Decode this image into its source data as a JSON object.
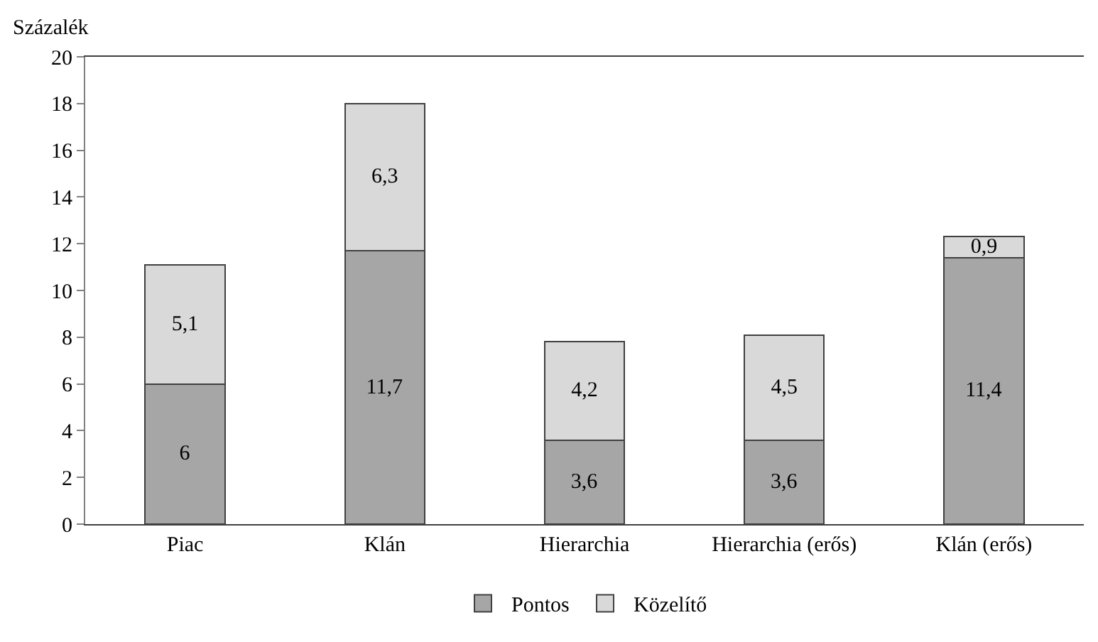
{
  "chart_data": {
    "type": "bar",
    "stacked": true,
    "ylabel": "Százalék",
    "categories": [
      "Piac",
      "Klán",
      "Hierarchia",
      "Hierarchia (erős)",
      "Klán (erős)"
    ],
    "series": [
      {
        "name": "Pontos",
        "color": "#a6a6a6",
        "values": [
          6,
          11.7,
          3.6,
          3.6,
          11.4
        ],
        "value_labels": [
          "6",
          "11,7",
          "3,6",
          "3,6",
          "11,4"
        ]
      },
      {
        "name": "Közelítő",
        "color": "#d9d9d9",
        "values": [
          5.1,
          6.3,
          4.2,
          4.5,
          0.9
        ],
        "value_labels": [
          "5,1",
          "6,3",
          "4,2",
          "4,5",
          "0,9"
        ]
      }
    ],
    "ylim": [
      0,
      20
    ],
    "yticks": [
      0,
      2,
      4,
      6,
      8,
      10,
      12,
      14,
      16,
      18,
      20
    ],
    "grid": false,
    "legend": "bottom"
  }
}
